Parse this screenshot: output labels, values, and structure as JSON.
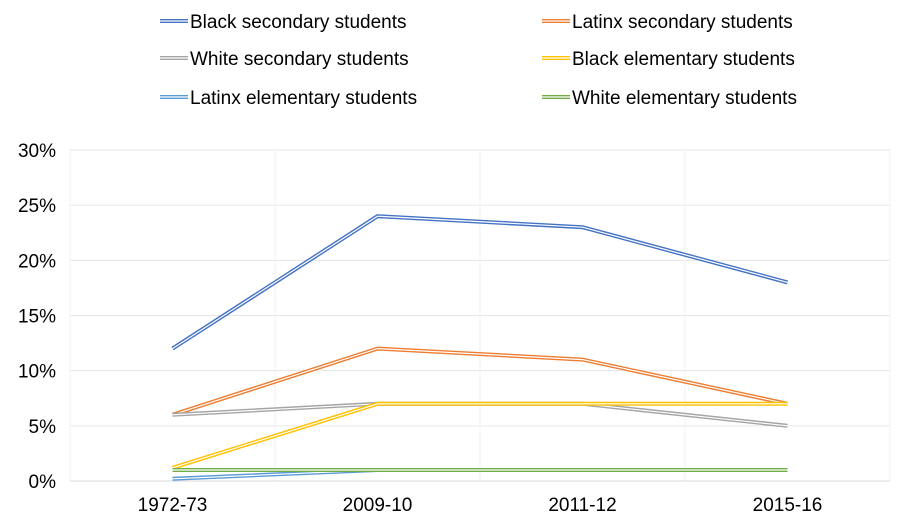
{
  "chart_data": {
    "type": "line",
    "title": "",
    "xlabel": "",
    "ylabel": "",
    "categories": [
      "1972-73",
      "2009-10",
      "2011-12",
      "2015-16"
    ],
    "ylim": [
      0,
      30
    ],
    "y_ticks": [
      "0%",
      "5%",
      "10%",
      "15%",
      "20%",
      "25%",
      "30%"
    ],
    "y_tick_values": [
      0,
      5,
      10,
      15,
      20,
      25,
      30
    ],
    "grid": true,
    "legend_position": "top",
    "series": [
      {
        "name": "Black secondary students",
        "color": "#4472C4",
        "values": [
          12,
          24,
          23,
          18
        ]
      },
      {
        "name": "Latinx secondary students",
        "color": "#ED7D31",
        "values": [
          6,
          12,
          11,
          7
        ]
      },
      {
        "name": "White secondary students",
        "color": "#A5A5A5",
        "values": [
          6,
          7,
          7,
          5
        ]
      },
      {
        "name": "Black elementary students",
        "color": "#FFC000",
        "values": [
          1.2,
          7,
          7,
          7
        ]
      },
      {
        "name": "Latinx elementary students",
        "color": "#5B9BD5",
        "values": [
          0.2,
          1,
          1,
          1
        ]
      },
      {
        "name": "White elementary students",
        "color": "#70AD47",
        "values": [
          1,
          1,
          1,
          1
        ]
      }
    ]
  }
}
